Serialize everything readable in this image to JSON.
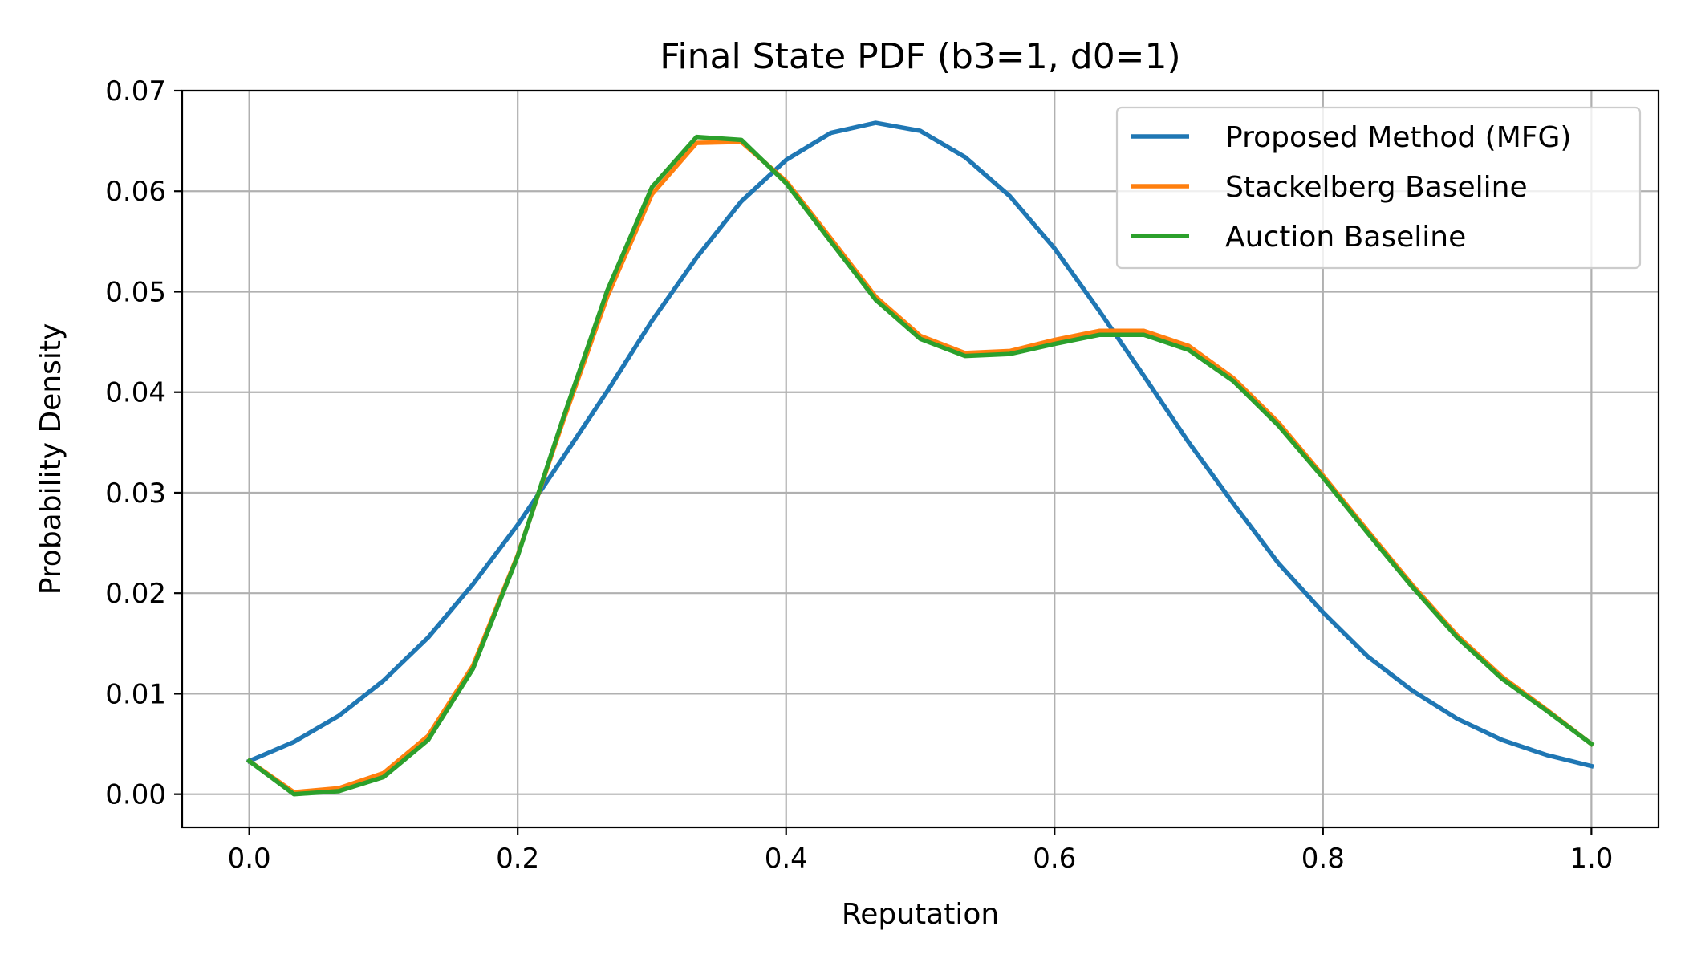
{
  "chart_data": {
    "type": "line",
    "title": "Final State PDF (b3=1, d0=1)",
    "xlabel": "Reputation",
    "ylabel": "Probability Density",
    "xlim": [
      -0.05,
      1.05
    ],
    "ylim": [
      -0.0033,
      0.07
    ],
    "xticks": [
      0.0,
      0.2,
      0.4,
      0.6,
      0.8,
      1.0
    ],
    "xtick_labels": [
      "0.0",
      "0.2",
      "0.4",
      "0.6",
      "0.8",
      "1.0"
    ],
    "yticks": [
      0.0,
      0.01,
      0.02,
      0.03,
      0.04,
      0.05,
      0.06,
      0.07
    ],
    "ytick_labels": [
      "0.00",
      "0.01",
      "0.02",
      "0.03",
      "0.04",
      "0.05",
      "0.06",
      "0.07"
    ],
    "grid": true,
    "legend_position": "top-right",
    "x": [
      0.0,
      0.0333,
      0.0667,
      0.1,
      0.1333,
      0.1667,
      0.2,
      0.2333,
      0.2667,
      0.3,
      0.3333,
      0.3667,
      0.4,
      0.4333,
      0.4667,
      0.5,
      0.5333,
      0.5667,
      0.6,
      0.6333,
      0.6667,
      0.7,
      0.7333,
      0.7667,
      0.8,
      0.8333,
      0.8667,
      0.9,
      0.9333,
      0.9667,
      1.0
    ],
    "series": [
      {
        "name": "Proposed Method (MFG)",
        "color": "#1f77b4",
        "values": [
          0.0033,
          0.0052,
          0.0078,
          0.0113,
          0.0156,
          0.0209,
          0.0268,
          0.0334,
          0.0401,
          0.0471,
          0.0534,
          0.059,
          0.0631,
          0.0658,
          0.0668,
          0.066,
          0.0634,
          0.0595,
          0.0543,
          0.0481,
          0.0416,
          0.035,
          0.0289,
          0.023,
          0.0181,
          0.0137,
          0.0103,
          0.0075,
          0.0054,
          0.0039,
          0.0028
        ]
      },
      {
        "name": "Stackelberg Baseline",
        "color": "#ff7f0e",
        "values": [
          0.0033,
          0.0002,
          0.0006,
          0.0021,
          0.0058,
          0.0128,
          0.0238,
          0.0369,
          0.0495,
          0.0597,
          0.0648,
          0.0649,
          0.061,
          0.0553,
          0.0495,
          0.0456,
          0.0439,
          0.0441,
          0.0452,
          0.0461,
          0.0461,
          0.0446,
          0.0414,
          0.037,
          0.0317,
          0.0262,
          0.0208,
          0.0158,
          0.0117,
          0.0084,
          0.005
        ]
      },
      {
        "name": "Auction Baseline",
        "color": "#2ca02c",
        "values": [
          0.0033,
          0.0,
          0.0003,
          0.0017,
          0.0054,
          0.0125,
          0.0237,
          0.0372,
          0.0501,
          0.0604,
          0.0654,
          0.0651,
          0.0608,
          0.055,
          0.0492,
          0.0453,
          0.0436,
          0.0438,
          0.0448,
          0.0457,
          0.0457,
          0.0442,
          0.0411,
          0.0367,
          0.0315,
          0.026,
          0.0206,
          0.0156,
          0.0115,
          0.0083,
          0.005
        ]
      }
    ]
  }
}
